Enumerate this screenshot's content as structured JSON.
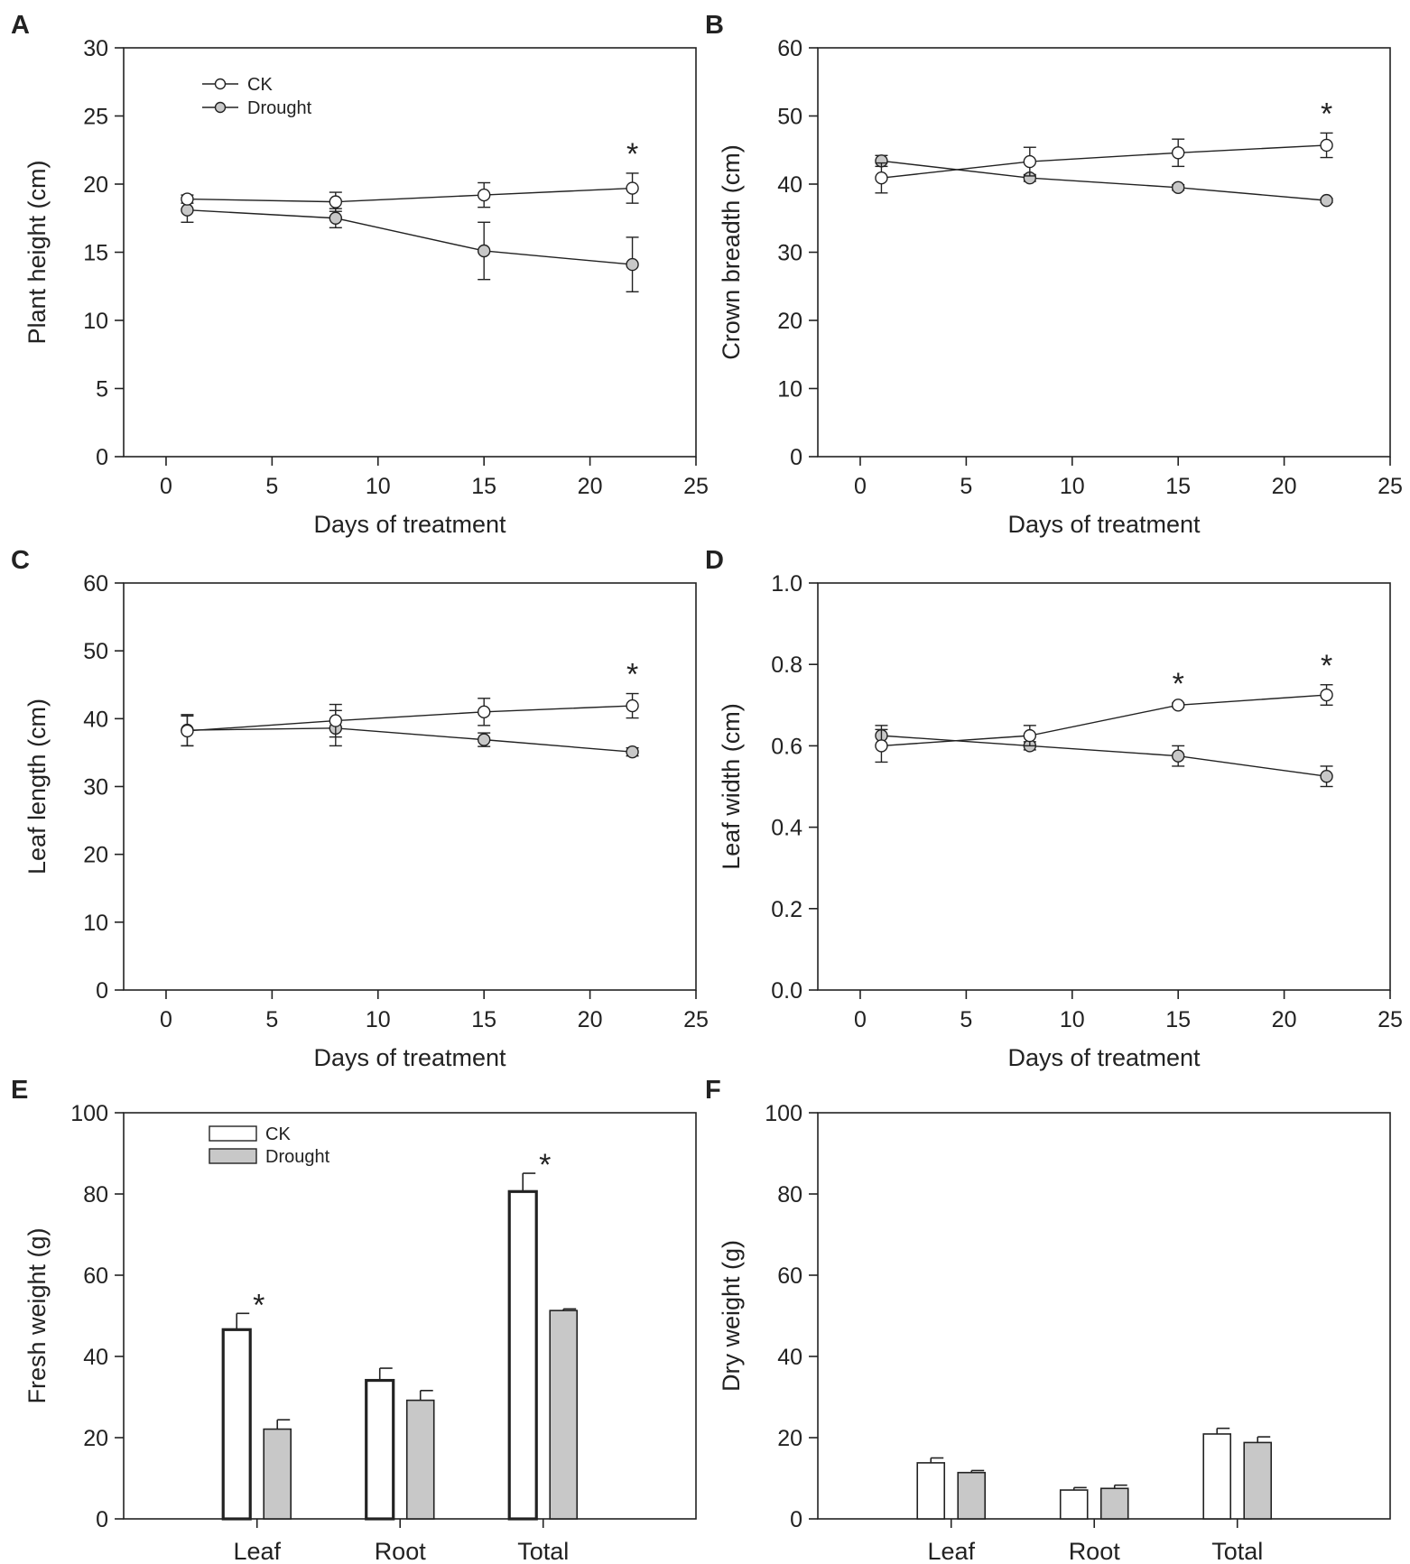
{
  "figure": {
    "colors": {
      "ink": "#222222",
      "ck_fill": "#ffffff",
      "drought_fill": "#c8c8c8",
      "background": "#ffffff"
    },
    "significance_symbol": "*"
  },
  "chart_data": [
    {
      "panel": "A",
      "type": "line",
      "xlabel": "Days of treatment",
      "ylabel": "Plant height (cm)",
      "xlim": [
        -2,
        25
      ],
      "ylim": [
        0,
        30
      ],
      "xticks": [
        0,
        5,
        10,
        15,
        20,
        25
      ],
      "yticks": [
        0,
        5,
        10,
        15,
        20,
        25,
        30
      ],
      "x": [
        1,
        8,
        15,
        22
      ],
      "legend": {
        "position": "top-left",
        "entries": [
          "CK",
          "Drought"
        ]
      },
      "series": [
        {
          "name": "CK",
          "values": [
            18.9,
            18.7,
            19.2,
            19.7
          ],
          "errors": [
            0.3,
            0.7,
            0.9,
            1.1
          ]
        },
        {
          "name": "Drought",
          "values": [
            18.1,
            17.5,
            15.1,
            14.1
          ],
          "errors": [
            0.9,
            0.7,
            2.1,
            2.0
          ]
        }
      ],
      "significance_x": [
        22
      ]
    },
    {
      "panel": "B",
      "type": "line",
      "xlabel": "Days of treatment",
      "ylabel": "Crown breadth (cm)",
      "xlim": [
        -2,
        25
      ],
      "ylim": [
        0,
        60
      ],
      "xticks": [
        0,
        5,
        10,
        15,
        20,
        25
      ],
      "yticks": [
        0,
        10,
        20,
        30,
        40,
        50,
        60
      ],
      "x": [
        1,
        8,
        15,
        22
      ],
      "legend": null,
      "series": [
        {
          "name": "CK",
          "values": [
            40.9,
            43.3,
            44.6,
            45.7
          ],
          "errors": [
            2.2,
            2.1,
            2.0,
            1.8
          ]
        },
        {
          "name": "Drought",
          "values": [
            43.4,
            40.9,
            39.5,
            37.6
          ],
          "errors": [
            0.8,
            0.5,
            0.4,
            0.3
          ]
        }
      ],
      "significance_x": [
        22
      ]
    },
    {
      "panel": "C",
      "type": "line",
      "xlabel": "Days of treatment",
      "ylabel": "Leaf length (cm)",
      "xlim": [
        -2,
        25
      ],
      "ylim": [
        0,
        60
      ],
      "xticks": [
        0,
        5,
        10,
        15,
        20,
        25
      ],
      "yticks": [
        0,
        10,
        20,
        30,
        40,
        50,
        60
      ],
      "x": [
        1,
        8,
        15,
        22
      ],
      "legend": null,
      "series": [
        {
          "name": "CK",
          "values": [
            38.2,
            39.7,
            41.0,
            41.9
          ],
          "errors": [
            2.2,
            2.4,
            2.0,
            1.8
          ]
        },
        {
          "name": "Drought",
          "values": [
            38.3,
            38.6,
            36.9,
            35.1
          ],
          "errors": [
            2.3,
            2.6,
            1.0,
            0.6
          ]
        }
      ],
      "significance_x": [
        22
      ]
    },
    {
      "panel": "D",
      "type": "line",
      "xlabel": "Days of treatment",
      "ylabel": "Leaf width (cm)",
      "xlim": [
        -2,
        25
      ],
      "ylim": [
        0,
        1
      ],
      "xticks": [
        0,
        5,
        10,
        15,
        20,
        25
      ],
      "yticks": [
        0.0,
        0.2,
        0.4,
        0.6,
        0.8,
        1.0
      ],
      "ytick_labels": [
        "0.0",
        "0.2",
        "0.4",
        "0.6",
        "0.8",
        "1.0"
      ],
      "x": [
        1,
        8,
        15,
        22
      ],
      "legend": null,
      "series": [
        {
          "name": "CK",
          "values": [
            0.6,
            0.625,
            0.7,
            0.725
          ],
          "errors": [
            0.04,
            0.025,
            0.005,
            0.025
          ]
        },
        {
          "name": "Drought",
          "values": [
            0.625,
            0.6,
            0.575,
            0.525
          ],
          "errors": [
            0.025,
            0.01,
            0.025,
            0.025
          ]
        }
      ],
      "significance_x": [
        15,
        22
      ]
    },
    {
      "panel": "E",
      "type": "bar",
      "xlabel": "",
      "ylabel": "Fresh weight (g)",
      "ylim": [
        0,
        100
      ],
      "yticks": [
        0,
        20,
        40,
        60,
        80,
        100
      ],
      "categories": [
        "Leaf",
        "Root",
        "Total"
      ],
      "legend": {
        "position": "top-left",
        "entries": [
          "CK",
          "Drought"
        ]
      },
      "series": [
        {
          "name": "CK",
          "values": [
            46.6,
            34.1,
            80.6
          ],
          "errors": [
            4.0,
            3.0,
            4.5
          ]
        },
        {
          "name": "Drought",
          "values": [
            22.1,
            29.2,
            51.3
          ],
          "errors": [
            2.3,
            2.4,
            0.4
          ]
        }
      ],
      "significance_categories": [
        "Leaf",
        "Total"
      ]
    },
    {
      "panel": "F",
      "type": "bar",
      "xlabel": "",
      "ylabel": "Dry weight (g)",
      "ylim": [
        0,
        100
      ],
      "yticks": [
        0,
        20,
        40,
        60,
        80,
        100
      ],
      "categories": [
        "Leaf",
        "Root",
        "Total"
      ],
      "legend": null,
      "series": [
        {
          "name": "CK",
          "values": [
            13.8,
            7.1,
            20.9
          ],
          "errors": [
            1.2,
            0.6,
            1.4
          ]
        },
        {
          "name": "Drought",
          "values": [
            11.4,
            7.5,
            18.8
          ],
          "errors": [
            0.5,
            0.8,
            1.4
          ]
        }
      ],
      "significance_categories": []
    }
  ]
}
